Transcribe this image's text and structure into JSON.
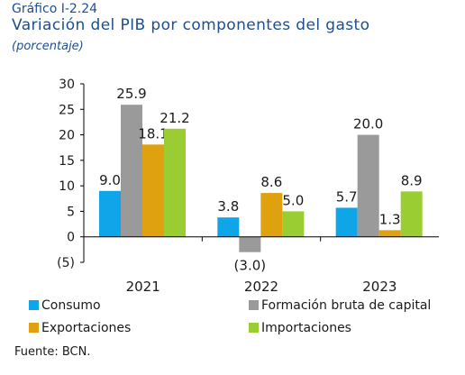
{
  "figure_label": "Gráfico I-2.24",
  "title": "Variación del PIB por componentes del gasto",
  "subtitle": "(porcentaje)",
  "source": "Fuente: BCN.",
  "chart_data": {
    "type": "bar",
    "categories": [
      "2021",
      "2022",
      "2023"
    ],
    "ylim": [
      -5,
      30
    ],
    "yticks": [
      -5,
      0,
      5,
      10,
      15,
      20,
      25,
      30
    ],
    "ytick_labels": [
      "(5)",
      "0",
      "5",
      "10",
      "15",
      "20",
      "25",
      "30"
    ],
    "grid": false,
    "legend_position": "bottom",
    "series": [
      {
        "name": "Consumo",
        "color": "#0ea5e9",
        "values": [
          9.0,
          3.8,
          5.7
        ],
        "labels": [
          "9.0",
          "3.8",
          "5.7"
        ]
      },
      {
        "name": "Formación bruta de capital",
        "color": "#9a9a9a",
        "values": [
          25.9,
          -3.0,
          20.0
        ],
        "labels": [
          "25.9",
          "(3.0)",
          "20.0"
        ]
      },
      {
        "name": "Exportaciones",
        "color": "#e0a110",
        "values": [
          18.1,
          8.6,
          1.3
        ],
        "labels": [
          "18.1",
          "8.6",
          "1.3"
        ]
      },
      {
        "name": "Importaciones",
        "color": "#9acd32",
        "values": [
          21.2,
          5.0,
          8.9
        ],
        "labels": [
          "21.2",
          "5.0",
          "8.9"
        ]
      }
    ]
  }
}
